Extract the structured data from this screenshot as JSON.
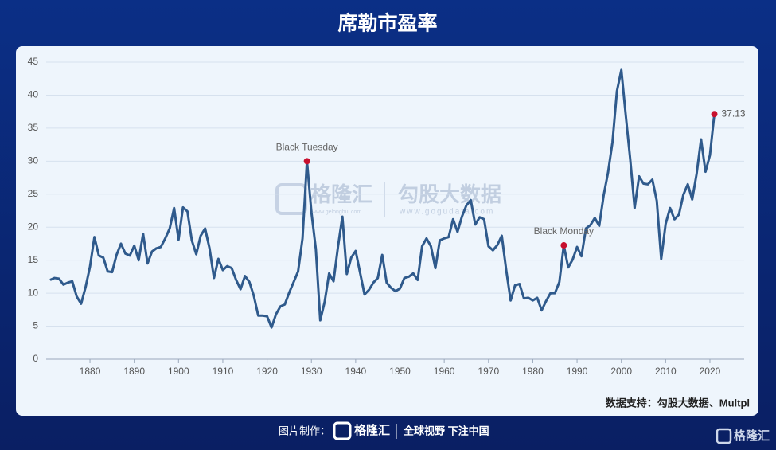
{
  "chart_data": {
    "type": "line",
    "title": "席勒市盈率",
    "source": "数据支持：勾股大数据、Multpl",
    "x": [
      1871,
      1872,
      1873,
      1874,
      1875,
      1876,
      1877,
      1878,
      1879,
      1880,
      1881,
      1882,
      1883,
      1884,
      1885,
      1886,
      1887,
      1888,
      1889,
      1890,
      1891,
      1892,
      1893,
      1894,
      1895,
      1896,
      1897,
      1898,
      1899,
      1900,
      1901,
      1902,
      1903,
      1904,
      1905,
      1906,
      1907,
      1908,
      1909,
      1910,
      1911,
      1912,
      1913,
      1914,
      1915,
      1916,
      1917,
      1918,
      1919,
      1920,
      1921,
      1922,
      1923,
      1924,
      1925,
      1926,
      1927,
      1928,
      1929,
      1930,
      1931,
      1932,
      1933,
      1934,
      1935,
      1936,
      1937,
      1938,
      1939,
      1940,
      1941,
      1942,
      1943,
      1944,
      1945,
      1946,
      1947,
      1948,
      1949,
      1950,
      1951,
      1952,
      1953,
      1954,
      1955,
      1956,
      1957,
      1958,
      1959,
      1960,
      1961,
      1962,
      1963,
      1964,
      1965,
      1966,
      1967,
      1968,
      1969,
      1970,
      1971,
      1972,
      1973,
      1974,
      1975,
      1976,
      1977,
      1978,
      1979,
      1980,
      1981,
      1982,
      1983,
      1984,
      1985,
      1986,
      1987,
      1988,
      1989,
      1990,
      1991,
      1992,
      1993,
      1994,
      1995,
      1996,
      1997,
      1998,
      1999,
      2000,
      2001,
      2002,
      2003,
      2004,
      2005,
      2006,
      2007,
      2008,
      2009,
      2010,
      2011,
      2012,
      2013,
      2014,
      2015,
      2016,
      2017,
      2018,
      2019,
      2020,
      2021
    ],
    "series": [
      {
        "color": "#2f5a8c",
        "values": [
          12.0,
          12.3,
          12.2,
          11.3,
          11.6,
          11.8,
          9.5,
          8.4,
          10.9,
          14.0,
          18.5,
          15.7,
          15.4,
          13.3,
          13.2,
          15.8,
          17.5,
          16.0,
          15.7,
          17.2,
          15.0,
          19.0,
          14.5,
          16.3,
          16.8,
          17.0,
          18.3,
          19.8,
          22.9,
          18.1,
          23.0,
          22.4,
          18.0,
          15.9,
          18.7,
          19.8,
          16.8,
          12.3,
          15.2,
          13.5,
          14.1,
          13.8,
          12.0,
          10.6,
          12.6,
          11.7,
          9.6,
          6.6,
          6.6,
          6.5,
          4.8,
          6.8,
          8.0,
          8.3,
          10.1,
          11.7,
          13.3,
          18.3,
          30.0,
          22.3,
          16.7,
          5.9,
          8.7,
          13.0,
          11.8,
          17.0,
          21.6,
          12.9,
          15.4,
          16.4,
          13.1,
          9.8,
          10.5,
          11.6,
          12.3,
          15.8,
          11.6,
          10.8,
          10.3,
          10.7,
          12.3,
          12.5,
          13.0,
          12.0,
          17.1,
          18.3,
          17.1,
          13.8,
          18.0,
          18.3,
          18.5,
          21.2,
          19.3,
          21.6,
          23.3,
          24.1,
          20.4,
          21.5,
          21.2,
          17.1,
          16.5,
          17.3,
          18.7,
          13.5,
          8.9,
          11.2,
          11.4,
          9.2,
          9.3,
          8.9,
          9.3,
          7.4,
          8.8,
          10.0,
          10.0,
          11.7,
          17.25,
          13.9,
          15.1,
          17.0,
          15.6,
          19.8,
          20.3,
          21.4,
          20.2,
          24.8,
          28.3,
          32.9,
          40.6,
          43.8,
          36.9,
          30.3,
          22.9,
          27.7,
          26.6,
          26.5,
          27.2,
          24.0,
          15.2,
          20.5,
          22.9,
          21.2,
          21.9,
          24.9,
          26.5,
          24.2,
          28.1,
          33.3,
          28.4,
          30.9,
          37.13
        ]
      }
    ],
    "annotations": [
      {
        "label": "Black Tuesday",
        "x": 1929
      },
      {
        "label": "Black Monday",
        "x": 1987
      }
    ],
    "marker_color": "#c8102e",
    "xlim": [
      1870,
      2025
    ],
    "xticks": [
      1880,
      1890,
      1900,
      1910,
      1920,
      1930,
      1940,
      1950,
      1960,
      1970,
      1980,
      1990,
      2000,
      2010,
      2020
    ],
    "ylim": [
      0,
      45
    ],
    "yticks": [
      0,
      5,
      10,
      15,
      20,
      25,
      30,
      35,
      40,
      45
    ],
    "grid": true
  },
  "watermark": {
    "logo": "格隆汇",
    "logo_url": "www.gelonghui.com",
    "brand": "勾股大数据",
    "brand_url": "www.gogudata.com"
  },
  "footer": {
    "made_by": "图片制作：",
    "logo": "格隆汇",
    "slogan": "全球视野 下注中国",
    "corner_logo": "格隆汇"
  }
}
